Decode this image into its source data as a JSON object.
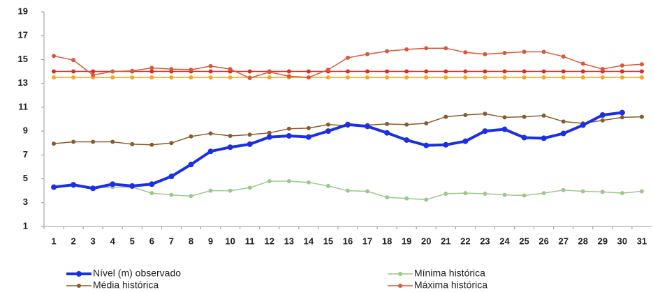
{
  "chart_data": {
    "type": "line",
    "categories": [
      1,
      2,
      3,
      4,
      5,
      6,
      7,
      8,
      9,
      10,
      11,
      12,
      13,
      14,
      15,
      16,
      17,
      18,
      19,
      20,
      21,
      22,
      23,
      24,
      25,
      26,
      27,
      28,
      29,
      30,
      31
    ],
    "ylim": [
      1,
      19
    ],
    "yticks": [
      1,
      3,
      5,
      7,
      9,
      11,
      13,
      15,
      17,
      19
    ],
    "series": [
      {
        "color": "#e8261c",
        "values": [
          14,
          14,
          14,
          14,
          14,
          14,
          14,
          14,
          14,
          14,
          14,
          14,
          14,
          14,
          14,
          14,
          14,
          14,
          14,
          14,
          14,
          14,
          14,
          14,
          14,
          14,
          14,
          14,
          14,
          14,
          14
        ]
      },
      {
        "color": "#f5a623",
        "values": [
          13.5,
          13.5,
          13.5,
          13.5,
          13.5,
          13.5,
          13.5,
          13.5,
          13.5,
          13.5,
          13.5,
          13.5,
          13.5,
          13.5,
          13.5,
          13.5,
          13.5,
          13.5,
          13.5,
          13.5,
          13.5,
          13.5,
          13.5,
          13.5,
          13.5,
          13.5,
          13.5,
          13.5,
          13.5,
          13.5,
          13.5
        ]
      },
      {
        "name": "Mínima histórica",
        "color": "#9bc98a",
        "values": [
          4.3,
          4.4,
          4.25,
          4.3,
          4.3,
          3.8,
          3.65,
          3.55,
          4.0,
          4.0,
          4.25,
          4.8,
          4.8,
          4.7,
          4.4,
          4.0,
          3.95,
          3.45,
          3.35,
          3.25,
          3.75,
          3.8,
          3.75,
          3.65,
          3.6,
          3.8,
          4.05,
          3.95,
          3.9,
          3.8,
          3.95
        ]
      },
      {
        "name": "Média histórica",
        "color": "#8b5a2b",
        "values": [
          7.95,
          8.1,
          8.1,
          8.1,
          7.9,
          7.85,
          8.0,
          8.55,
          8.8,
          8.6,
          8.7,
          8.85,
          9.2,
          9.25,
          9.55,
          9.45,
          9.5,
          9.6,
          9.55,
          9.65,
          10.2,
          10.35,
          10.45,
          10.15,
          10.2,
          10.3,
          9.8,
          9.65,
          9.9,
          10.15,
          10.2
        ]
      },
      {
        "name": "Máxima histórica",
        "color": "#d9573a",
        "values": [
          15.3,
          14.95,
          13.7,
          14.0,
          14.05,
          14.3,
          14.2,
          14.15,
          14.45,
          14.2,
          13.45,
          13.95,
          13.6,
          13.5,
          14.15,
          15.15,
          15.45,
          15.7,
          15.85,
          15.95,
          15.95,
          15.6,
          15.45,
          15.55,
          15.65,
          15.65,
          15.25,
          14.65,
          14.2,
          14.5,
          14.6
        ]
      },
      {
        "name": "Nível (m) observado",
        "color": "#1a2fe6",
        "width": 4,
        "values": [
          4.3,
          4.5,
          4.2,
          4.55,
          4.4,
          4.55,
          5.2,
          6.2,
          7.3,
          7.65,
          7.9,
          8.5,
          8.6,
          8.5,
          9.0,
          9.55,
          9.4,
          8.85,
          8.25,
          7.8,
          7.85,
          8.15,
          9.0,
          9.15,
          8.45,
          8.4,
          8.8,
          9.5,
          10.35,
          10.55,
          null
        ]
      }
    ]
  }
}
